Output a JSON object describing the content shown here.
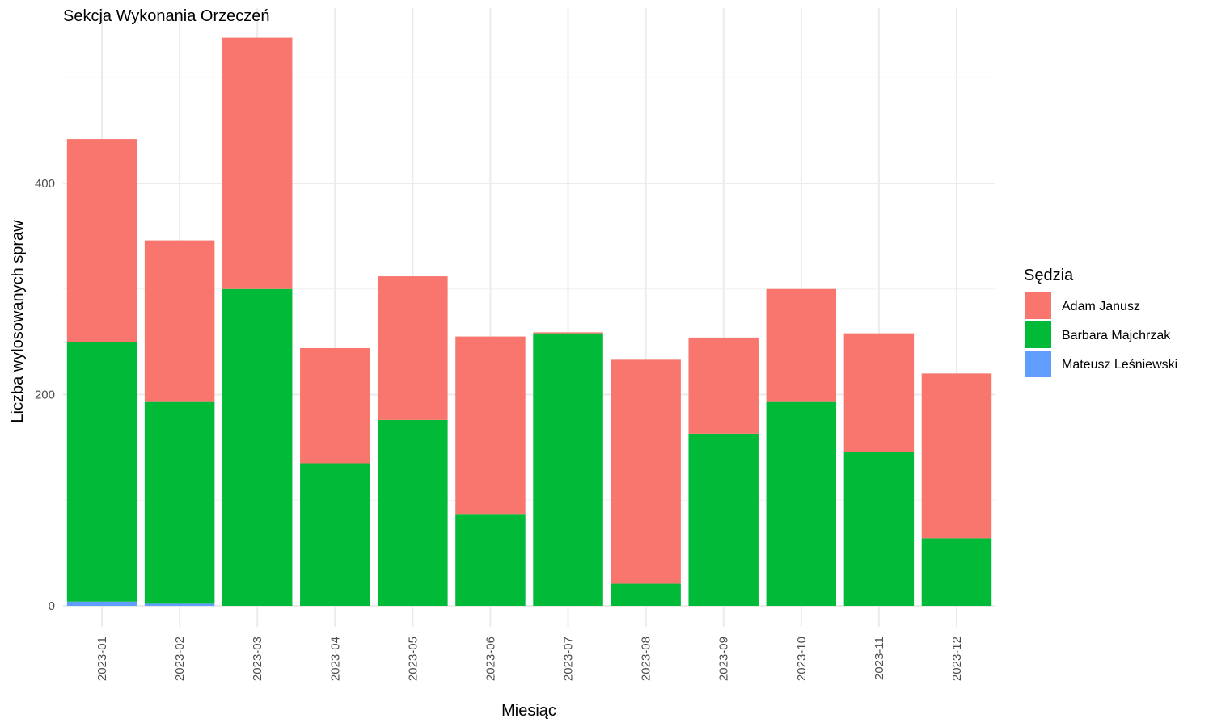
{
  "chart_data": {
    "type": "bar",
    "stacked": true,
    "title": "Sekcja Wykonania Orzeczeń",
    "xlabel": "Miesiąc",
    "ylabel": "Liczba wylosowanych spraw",
    "categories": [
      "2023-01",
      "2023-02",
      "2023-03",
      "2023-04",
      "2023-05",
      "2023-06",
      "2023-07",
      "2023-08",
      "2023-09",
      "2023-10",
      "2023-11",
      "2023-12"
    ],
    "ylim": [
      0,
      540
    ],
    "yticks": [
      0,
      200,
      400
    ],
    "grid": true,
    "legend_position": "right",
    "legend_title": "Sędzia",
    "series": [
      {
        "name": "Adam Janusz",
        "color": "#F8766D",
        "values": [
          192,
          153,
          238,
          109,
          136,
          168,
          1,
          212,
          91,
          107,
          112,
          156
        ]
      },
      {
        "name": "Barbara Majchrzak",
        "color": "#00BA38",
        "values": [
          246,
          191,
          300,
          135,
          176,
          87,
          258,
          21,
          163,
          193,
          146,
          64
        ]
      },
      {
        "name": "Mateusz Leśniewski",
        "color": "#619CFF",
        "values": [
          4,
          2,
          0,
          0,
          0,
          0,
          0,
          0,
          0,
          0,
          0,
          0
        ]
      }
    ]
  }
}
